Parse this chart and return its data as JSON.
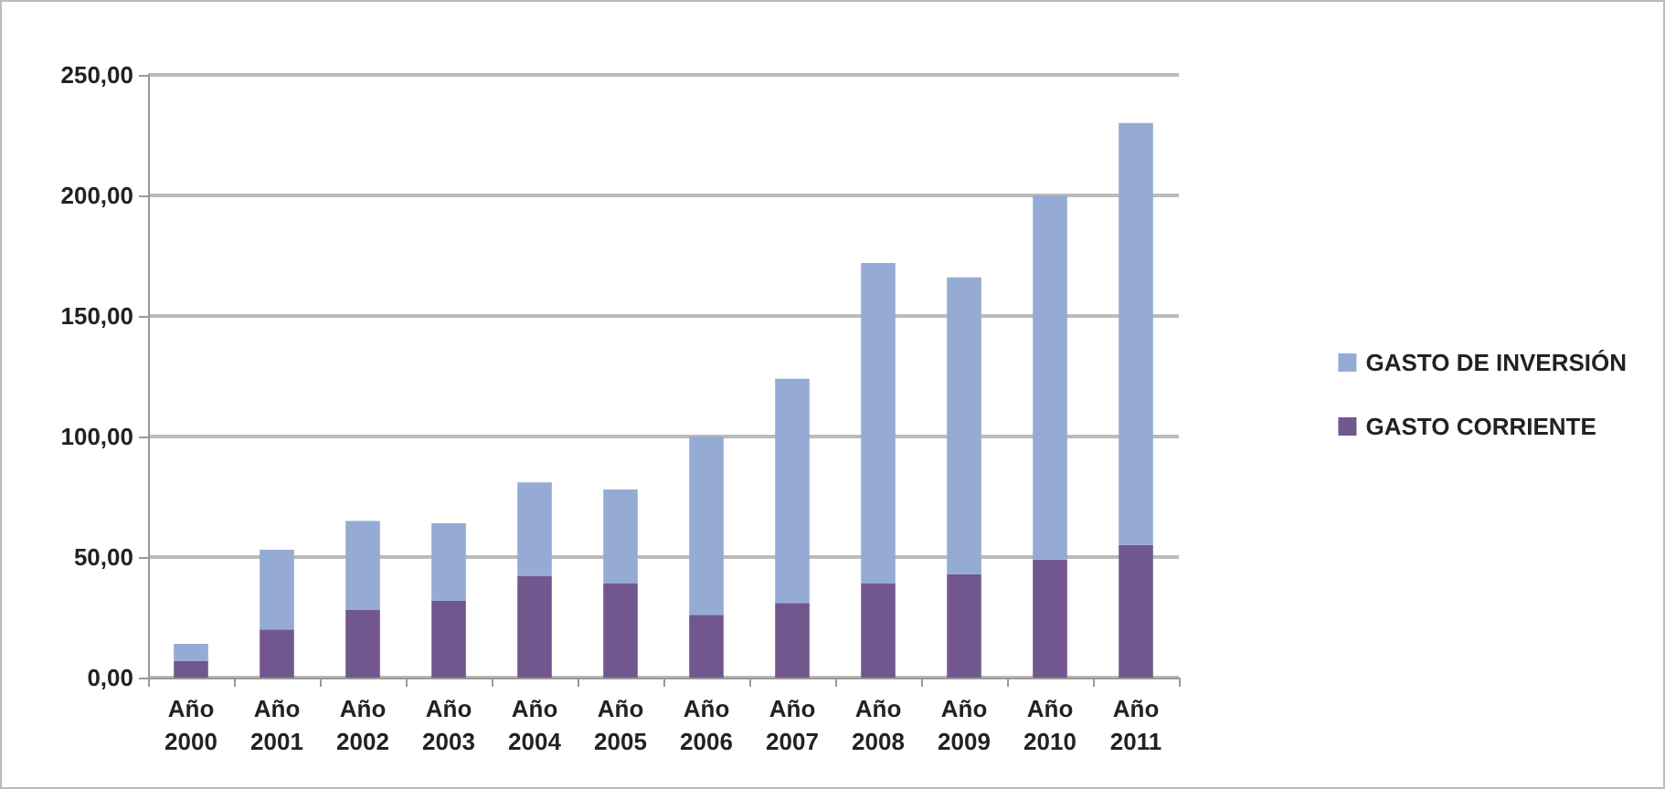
{
  "chart_data": {
    "type": "bar",
    "stacked": true,
    "categories": [
      "Año 2000",
      "Año 2001",
      "Año 2002",
      "Año 2003",
      "Año 2004",
      "Año 2005",
      "Año 2006",
      "Año 2007",
      "Año 2008",
      "Año 2009",
      "Año 2010",
      "Año 2011"
    ],
    "series": [
      {
        "name": "GASTO CORRIENTE",
        "color": "#72578f",
        "values": [
          7,
          20,
          28,
          32,
          42,
          39,
          26,
          31,
          39,
          43,
          49,
          55
        ]
      },
      {
        "name": "GASTO DE INVERSIÓN",
        "color": "#95abd4",
        "values": [
          7,
          33,
          37,
          32,
          39,
          39,
          74,
          93,
          133,
          123,
          151,
          175
        ]
      }
    ],
    "ylim": [
      0,
      250
    ],
    "yticks": [
      {
        "value": 0,
        "label": "0,00"
      },
      {
        "value": 50,
        "label": "50,00"
      },
      {
        "value": 100,
        "label": "100,00"
      },
      {
        "value": 150,
        "label": "150,00"
      },
      {
        "value": 200,
        "label": "200,00"
      },
      {
        "value": 250,
        "label": "250,00"
      }
    ],
    "grid": "y",
    "legend": "right"
  }
}
